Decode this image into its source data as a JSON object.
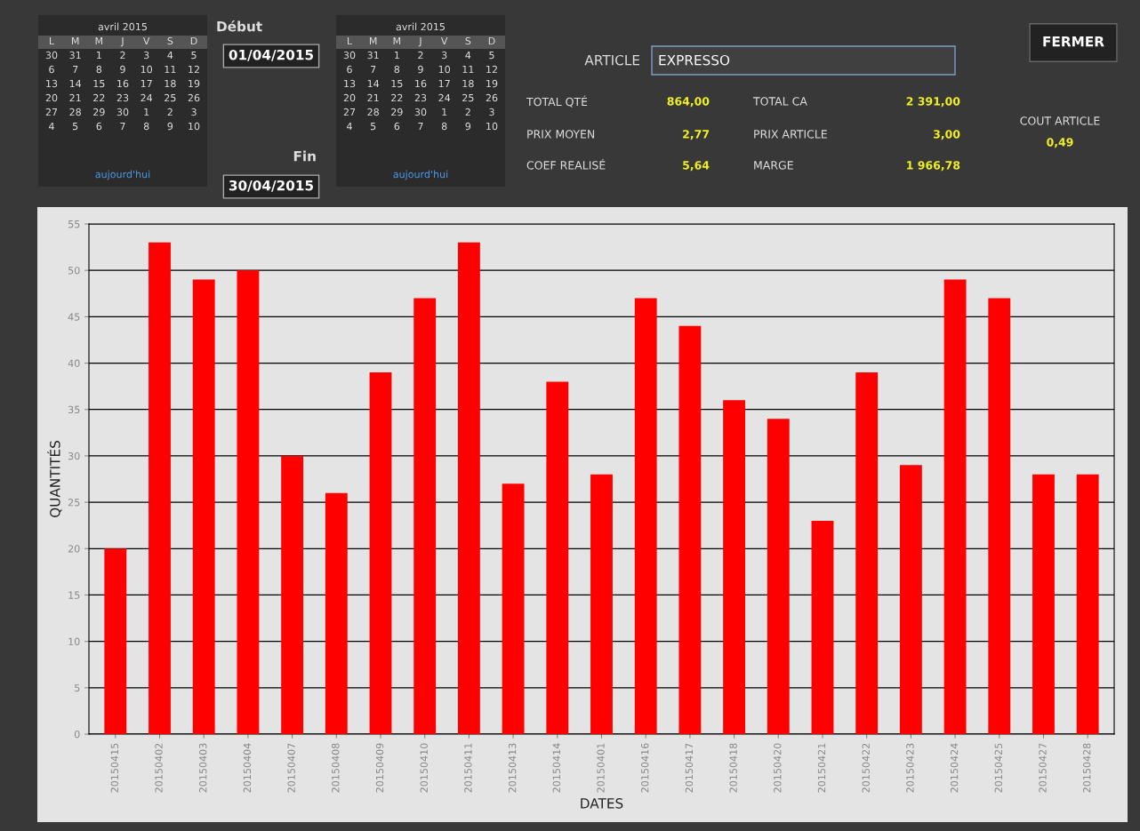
{
  "chart_data": {
    "type": "bar",
    "xlabel": "DATES",
    "ylabel": "QUANTITÉS",
    "categories": [
      "20150415",
      "20150402",
      "20150403",
      "20150404",
      "20150407",
      "20150408",
      "20150409",
      "20150410",
      "20150411",
      "20150413",
      "20150414",
      "20150401",
      "20150416",
      "20150417",
      "20150418",
      "20150420",
      "20150421",
      "20150422",
      "20150423",
      "20150424",
      "20150425",
      "20150427",
      "20150428"
    ],
    "values": [
      20,
      53,
      49,
      50,
      30,
      26,
      39,
      47,
      53,
      27,
      38,
      28,
      47,
      44,
      36,
      34,
      23,
      39,
      29,
      49,
      47,
      28,
      28
    ],
    "color": "#ff0000",
    "ylim": [
      0,
      55
    ],
    "yticks": [
      0,
      5,
      10,
      15,
      20,
      25,
      30,
      35,
      40,
      45,
      50,
      55
    ],
    "grid": "y",
    "annotations": [
      "avril 2015",
      "L M M J V S D",
      "30 31 1 2 3 4 5",
      "6 7 8 9 10 11 12",
      "13 14 15 16 17 18 19",
      "20 21 22 23 24 25 26",
      "27 28 29 30 1 2 3",
      "4 5 6 7 8 9 10",
      "aujourd'hui",
      "Début",
      "01/04/2015",
      "Fin",
      "30/04/2015",
      "avril 2015",
      "L M M J V S D",
      "30 31 1 2 3 4 5",
      "6 7 8 9 10 11 12",
      "13 14 15 16 17 18 19",
      "20 21 22 23 24 25 26",
      "27 28 29 30 1 2 3",
      "4 5 6 7 8 9 10",
      "aujourd'hui",
      "ARTICLE",
      "EXPRESSO",
      "TOTAL QTÉ",
      "864,00",
      "TOTAL CA",
      "2 391,00",
      "PRIX MOYEN",
      "2,77",
      "PRIX ARTICLE",
      "3,00",
      "COEF REALISÉ",
      "5,64",
      "MARGE",
      "1 966,78",
      "COUT ARTICLE",
      "0,49",
      "FERMER"
    ]
  }
}
